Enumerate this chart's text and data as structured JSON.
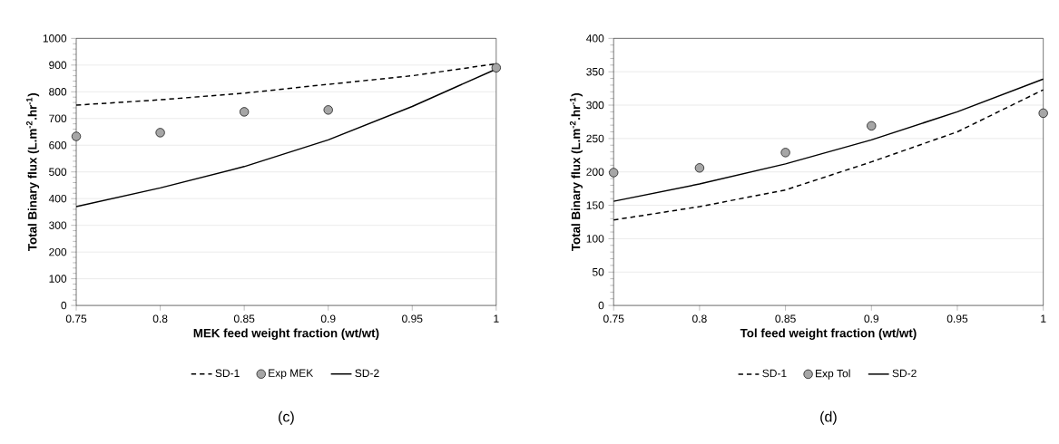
{
  "chart_data": [
    {
      "type": "line",
      "xlabel": "MEK feed weight fraction (wt/wt)",
      "ylabel": "Total Binary flux (L.m$^{-2}$.hr$^{-1}$)",
      "x": [
        0.75,
        0.8,
        0.85,
        0.9,
        0.95,
        1
      ],
      "xlim": [
        0.75,
        1
      ],
      "xticks": [
        0.75,
        0.8,
        0.85,
        0.9,
        0.95,
        1
      ],
      "ylim": [
        0,
        1000
      ],
      "yticks": [
        0,
        100,
        200,
        300,
        400,
        500,
        600,
        700,
        800,
        900,
        1000
      ],
      "grid": "y",
      "legend": "bottom",
      "annotations": [
        "(c)"
      ],
      "series": [
        {
          "name": "SD-1",
          "line_style": "dashed",
          "color": "#000000",
          "values": [
            750,
            770,
            795,
            828,
            860,
            905
          ]
        },
        {
          "name": "Exp MEK",
          "type": "scatter",
          "marker": "circle",
          "color": "#a6a6a6",
          "x": [
            0.75,
            0.8,
            0.85,
            0.9,
            1
          ],
          "values": [
            633,
            647,
            725,
            732,
            890
          ]
        },
        {
          "name": "SD-2",
          "line_style": "solid",
          "color": "#000000",
          "values": [
            370,
            440,
            520,
            620,
            745,
            885
          ]
        }
      ]
    },
    {
      "type": "line",
      "xlabel": "Tol feed weight fraction (wt/wt)",
      "ylabel": "Total Binary flux (L.m$^{-2}$.hr$^{-1}$)",
      "x": [
        0.75,
        0.8,
        0.85,
        0.9,
        0.95,
        1
      ],
      "xlim": [
        0.75,
        1
      ],
      "xticks": [
        0.75,
        0.8,
        0.85,
        0.9,
        0.95,
        1
      ],
      "ylim": [
        0,
        400
      ],
      "yticks": [
        0,
        50,
        100,
        150,
        200,
        250,
        300,
        350,
        400
      ],
      "grid": "y",
      "legend": "bottom",
      "annotations": [
        "(d)"
      ],
      "series": [
        {
          "name": "SD-1",
          "line_style": "dashed",
          "color": "#000000",
          "values": [
            128,
            148,
            173,
            215,
            260,
            323
          ]
        },
        {
          "name": "Exp Tol",
          "type": "scatter",
          "marker": "circle",
          "color": "#a6a6a6",
          "x": [
            0.75,
            0.8,
            0.85,
            0.9,
            1
          ],
          "values": [
            199,
            206,
            229,
            269,
            288
          ]
        },
        {
          "name": "SD-2",
          "line_style": "solid",
          "color": "#000000",
          "values": [
            156,
            182,
            212,
            248,
            290,
            339
          ]
        }
      ]
    }
  ]
}
